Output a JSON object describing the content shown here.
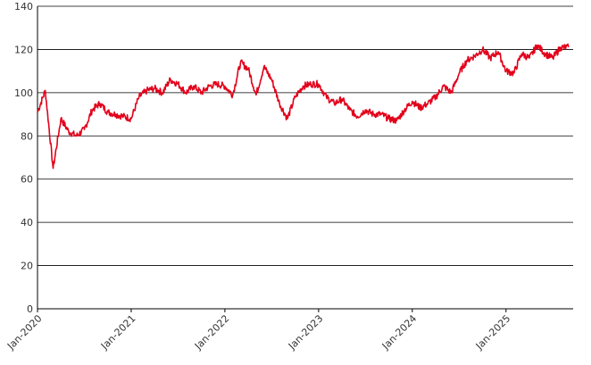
{
  "chart_data": {
    "type": "line",
    "title": "",
    "xlabel": "",
    "ylabel": "",
    "ylim": [
      0,
      140
    ],
    "yticks": [
      0,
      20,
      40,
      60,
      80,
      100,
      120,
      140
    ],
    "xlim": [
      "2020-01",
      "2025-09"
    ],
    "xticks": [
      "Jan-2020",
      "Jan-2021",
      "Jan-2022",
      "Jan-2023",
      "Jan-2024",
      "Jan-2025"
    ],
    "grid": "horizontal",
    "legend": "none",
    "series": [
      {
        "color": "#e2001a",
        "x": [
          "2020-01",
          "2020-02",
          "2020-03",
          "2020-04",
          "2020-05",
          "2020-06",
          "2020-07",
          "2020-08",
          "2020-09",
          "2020-10",
          "2020-11",
          "2020-12",
          "2021-01",
          "2021-02",
          "2021-03",
          "2021-04",
          "2021-05",
          "2021-06",
          "2021-07",
          "2021-08",
          "2021-09",
          "2021-10",
          "2021-11",
          "2021-12",
          "2022-01",
          "2022-02",
          "2022-03",
          "2022-04",
          "2022-05",
          "2022-06",
          "2022-07",
          "2022-08",
          "2022-09",
          "2022-10",
          "2022-11",
          "2022-12",
          "2023-01",
          "2023-02",
          "2023-03",
          "2023-04",
          "2023-05",
          "2023-06",
          "2023-07",
          "2023-08",
          "2023-09",
          "2023-10",
          "2023-11",
          "2023-12",
          "2024-01",
          "2024-02",
          "2024-03",
          "2024-04",
          "2024-05",
          "2024-06",
          "2024-07",
          "2024-08",
          "2024-09",
          "2024-10",
          "2024-11",
          "2024-12",
          "2025-01",
          "2025-02",
          "2025-03",
          "2025-04",
          "2025-05",
          "2025-06",
          "2025-07",
          "2025-08",
          "2025-09"
        ],
        "y": [
          91,
          101,
          65,
          88,
          82,
          80,
          83,
          92,
          95,
          91,
          90,
          89,
          88,
          98,
          101,
          102,
          100,
          106,
          104,
          100,
          103,
          100,
          103,
          104,
          103,
          99,
          114,
          111,
          99,
          112,
          106,
          95,
          88,
          98,
          103,
          104,
          104,
          98,
          95,
          97,
          92,
          89,
          92,
          90,
          90,
          88,
          87,
          92,
          96,
          93,
          95,
          98,
          103,
          100,
          109,
          115,
          117,
          120,
          116,
          119,
          110,
          109,
          118,
          116,
          122,
          118,
          116,
          121,
          121
        ]
      }
    ]
  }
}
